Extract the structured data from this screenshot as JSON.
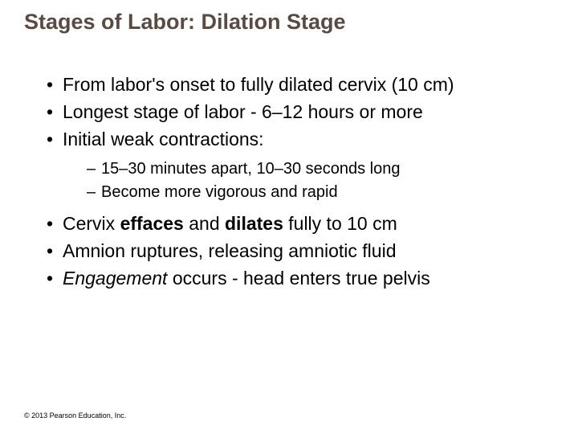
{
  "title": "Stages of Labor: Dilation Stage",
  "bullets": {
    "b1": "From labor's onset to fully dilated cervix (10 cm)",
    "b2": "Longest stage of labor - 6–12 hours or more",
    "b3": "Initial weak contractions:",
    "b3_sub1": "15–30 minutes apart, 10–30 seconds long",
    "b3_sub2": "Become more vigorous and rapid",
    "b4_pre": "Cervix ",
    "b4_bold1": "effaces",
    "b4_mid": " and ",
    "b4_bold2": "dilates",
    "b4_post": " fully to 10 cm",
    "b5": "Amnion ruptures, releasing amniotic fluid",
    "b6_italic": "Engagement",
    "b6_post": " occurs - head enters true pelvis"
  },
  "copyright": "© 2013 Pearson Education, Inc.",
  "colors": {
    "title_color": "#5a4a42",
    "text_color": "#000000",
    "background": "#ffffff"
  },
  "typography": {
    "title_fontsize": 27,
    "body_fontsize": 23,
    "sub_fontsize": 20,
    "copyright_fontsize": 9
  }
}
